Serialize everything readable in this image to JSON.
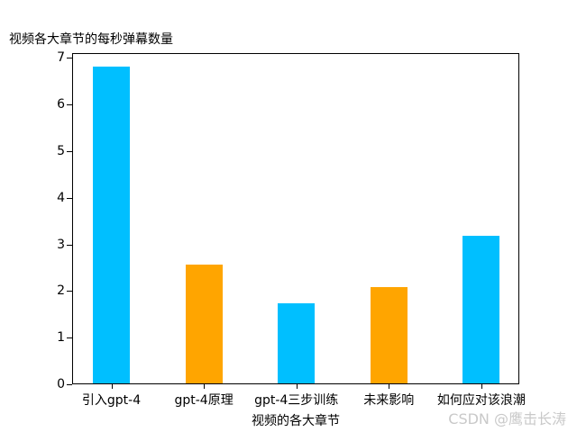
{
  "chart_data": {
    "type": "bar",
    "title": "视频各大章节的每秒弹幕数量",
    "xlabel": "视频的各大章节",
    "ylabel": "",
    "categories": [
      "引入gpt-4",
      "gpt-4原理",
      "gpt-4三步训练",
      "未来影响",
      "如何应对该浪潮"
    ],
    "values": [
      6.8,
      2.55,
      1.72,
      2.07,
      3.17
    ],
    "colors": [
      "#00BFFF",
      "#FFA500",
      "#00BFFF",
      "#FFA500",
      "#00BFFF"
    ],
    "yticks": [
      "0",
      "1",
      "2",
      "3",
      "4",
      "5",
      "6",
      "7"
    ],
    "ylim": [
      0,
      7.1
    ],
    "grid": false,
    "legend": null
  },
  "watermark": "CSDN @鹰击长涛"
}
